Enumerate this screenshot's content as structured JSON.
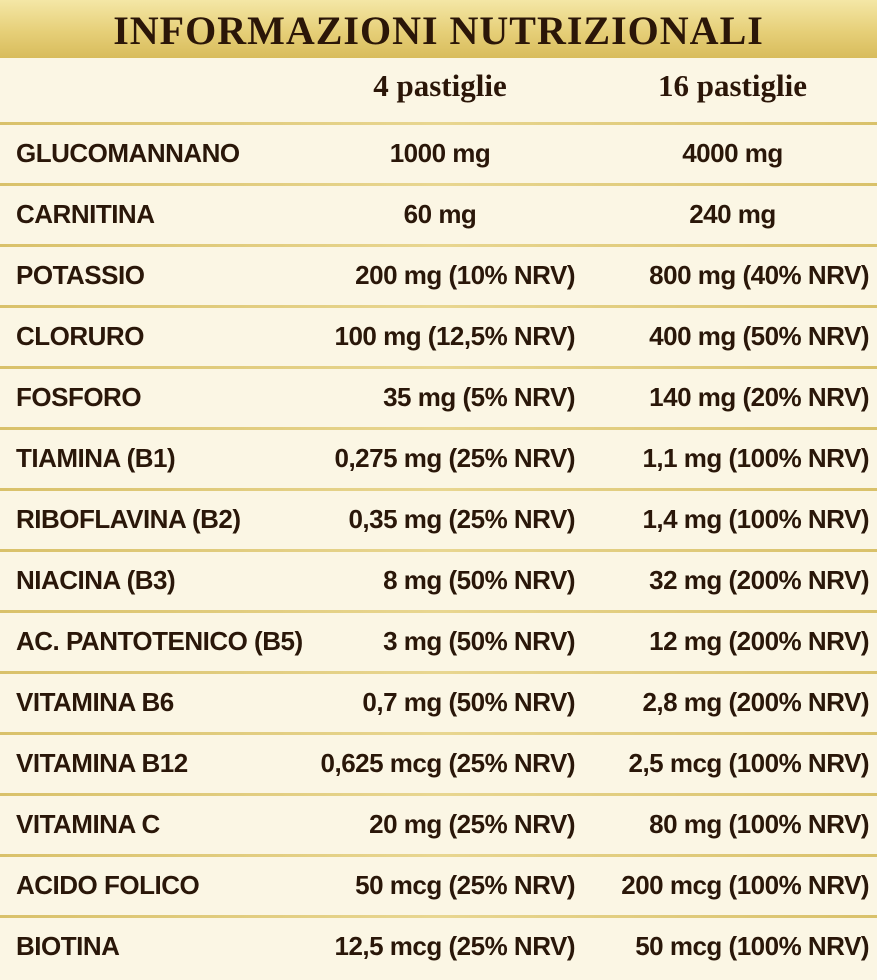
{
  "title": "INFORMAZIONI NUTRIZIONALI",
  "columns": [
    "4 pastiglie",
    "16 pastiglie"
  ],
  "rows": [
    {
      "name": "GLUCOMANNANO",
      "v1": "1000 mg",
      "v2": "4000 mg"
    },
    {
      "name": "CARNITINA",
      "v1": "60 mg",
      "v2": "240 mg"
    },
    {
      "name": "POTASSIO",
      "v1": "200 mg (10% NRV)",
      "v2": "800 mg (40% NRV)"
    },
    {
      "name": "CLORURO",
      "v1": "100 mg (12,5% NRV)",
      "v2": "400 mg (50% NRV)"
    },
    {
      "name": "FOSFORO",
      "v1": "35 mg (5% NRV)",
      "v2": "140 mg (20% NRV)"
    },
    {
      "name": "TIAMINA (B1)",
      "v1": "0,275 mg (25% NRV)",
      "v2": "1,1 mg (100% NRV)"
    },
    {
      "name": "RIBOFLAVINA (B2)",
      "v1": "0,35 mg (25% NRV)",
      "v2": "1,4 mg (100% NRV)"
    },
    {
      "name": "NIACINA (B3)",
      "v1": "8 mg (50% NRV)",
      "v2": "32 mg (200% NRV)"
    },
    {
      "name": "AC. PANTOTENICO (B5)",
      "v1": "3 mg (50% NRV)",
      "v2": "12 mg (200% NRV)"
    },
    {
      "name": "VITAMINA B6",
      "v1": "0,7 mg (50% NRV)",
      "v2": "2,8 mg (200% NRV)"
    },
    {
      "name": "VITAMINA B12",
      "v1": "0,625 mcg (25% NRV)",
      "v2": "2,5 mcg (100% NRV)"
    },
    {
      "name": "VITAMINA C",
      "v1": "20 mg (25% NRV)",
      "v2": "80 mg (100% NRV)"
    },
    {
      "name": "ACIDO FOLICO",
      "v1": "50 mcg (25% NRV)",
      "v2": "200 mcg (100% NRV)"
    },
    {
      "name": "BIOTINA",
      "v1": "12,5 mcg (25% NRV)",
      "v2": "50 mcg (100% NRV)"
    }
  ],
  "colors": {
    "background": "#fbf6e4",
    "title_band": "#e6cf78",
    "rule": "#d9c16a",
    "text": "#2a1709"
  }
}
